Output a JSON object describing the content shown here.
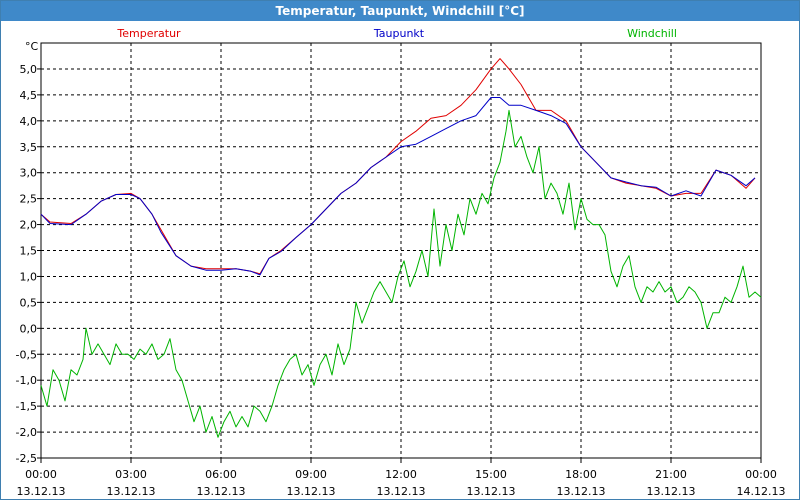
{
  "window": {
    "title": "Temperatur, Taupunkt, Windchill [°C]"
  },
  "chart_data": {
    "type": "line",
    "title": "Temperatur, Taupunkt, Windchill [°C]",
    "ylabel": "°C",
    "ylim": [
      -2.5,
      5.5
    ],
    "yticks": [
      "5,0",
      "4,5",
      "4,0",
      "3,5",
      "3,0",
      "2,5",
      "2,0",
      "1,5",
      "1,0",
      "0,5",
      "0,0",
      "-0,5",
      "-1,0",
      "-1,5",
      "-2,0",
      "-2,5"
    ],
    "xlim_hours": [
      0,
      24
    ],
    "xticks": [
      {
        "time": "00:00",
        "date": "13.12.13"
      },
      {
        "time": "03:00",
        "date": "13.12.13"
      },
      {
        "time": "06:00",
        "date": "13.12.13"
      },
      {
        "time": "09:00",
        "date": "13.12.13"
      },
      {
        "time": "12:00",
        "date": "13.12.13"
      },
      {
        "time": "15:00",
        "date": "13.12.13"
      },
      {
        "time": "18:00",
        "date": "13.12.13"
      },
      {
        "time": "21:00",
        "date": "13.12.13"
      },
      {
        "time": "00:00",
        "date": "14.12.13"
      }
    ],
    "grid": true,
    "legend_position": "top",
    "series": [
      {
        "name": "Temperatur",
        "color": "#e00000",
        "points": [
          [
            0,
            2.2
          ],
          [
            0.3,
            2.05
          ],
          [
            1,
            2.02
          ],
          [
            1.5,
            2.2
          ],
          [
            2,
            2.45
          ],
          [
            2.5,
            2.58
          ],
          [
            3,
            2.6
          ],
          [
            3.3,
            2.5
          ],
          [
            3.7,
            2.2
          ],
          [
            4,
            1.9
          ],
          [
            4.5,
            1.4
          ],
          [
            5,
            1.2
          ],
          [
            5.5,
            1.15
          ],
          [
            6,
            1.15
          ],
          [
            6.5,
            1.15
          ],
          [
            7,
            1.1
          ],
          [
            7.3,
            1.05
          ],
          [
            7.6,
            1.35
          ],
          [
            8,
            1.5
          ],
          [
            8.5,
            1.75
          ],
          [
            9,
            2.0
          ],
          [
            9.5,
            2.3
          ],
          [
            10,
            2.6
          ],
          [
            10.5,
            2.8
          ],
          [
            11,
            3.1
          ],
          [
            11.5,
            3.3
          ],
          [
            12,
            3.6
          ],
          [
            12.5,
            3.8
          ],
          [
            13,
            4.05
          ],
          [
            13.5,
            4.1
          ],
          [
            14,
            4.3
          ],
          [
            14.5,
            4.6
          ],
          [
            15,
            5.0
          ],
          [
            15.3,
            5.2
          ],
          [
            15.6,
            5.0
          ],
          [
            16,
            4.7
          ],
          [
            16.5,
            4.2
          ],
          [
            17,
            4.2
          ],
          [
            17.5,
            4.0
          ],
          [
            18,
            3.5
          ],
          [
            18.5,
            3.2
          ],
          [
            19,
            2.9
          ],
          [
            19.5,
            2.8
          ],
          [
            20,
            2.75
          ],
          [
            20.5,
            2.7
          ],
          [
            21,
            2.55
          ],
          [
            21.5,
            2.6
          ],
          [
            22,
            2.6
          ],
          [
            22.5,
            3.05
          ],
          [
            23,
            2.95
          ],
          [
            23.5,
            2.7
          ],
          [
            23.8,
            2.9
          ]
        ]
      },
      {
        "name": "Taupunkt",
        "color": "#0000c8",
        "points": [
          [
            0,
            2.2
          ],
          [
            0.3,
            2.02
          ],
          [
            1,
            2.0
          ],
          [
            1.5,
            2.2
          ],
          [
            2,
            2.45
          ],
          [
            2.5,
            2.58
          ],
          [
            3,
            2.58
          ],
          [
            3.3,
            2.5
          ],
          [
            3.7,
            2.2
          ],
          [
            4,
            1.85
          ],
          [
            4.5,
            1.4
          ],
          [
            5,
            1.2
          ],
          [
            5.5,
            1.12
          ],
          [
            6,
            1.12
          ],
          [
            6.5,
            1.15
          ],
          [
            7,
            1.1
          ],
          [
            7.3,
            1.03
          ],
          [
            7.6,
            1.35
          ],
          [
            8,
            1.48
          ],
          [
            8.5,
            1.75
          ],
          [
            9,
            2.0
          ],
          [
            9.5,
            2.3
          ],
          [
            10,
            2.6
          ],
          [
            10.5,
            2.8
          ],
          [
            11,
            3.1
          ],
          [
            11.5,
            3.3
          ],
          [
            12,
            3.5
          ],
          [
            12.5,
            3.55
          ],
          [
            13,
            3.7
          ],
          [
            13.5,
            3.85
          ],
          [
            14,
            4.0
          ],
          [
            14.5,
            4.1
          ],
          [
            15,
            4.45
          ],
          [
            15.3,
            4.45
          ],
          [
            15.6,
            4.3
          ],
          [
            16,
            4.3
          ],
          [
            16.5,
            4.2
          ],
          [
            17,
            4.1
          ],
          [
            17.5,
            3.95
          ],
          [
            18,
            3.5
          ],
          [
            18.5,
            3.2
          ],
          [
            19,
            2.9
          ],
          [
            19.5,
            2.82
          ],
          [
            20,
            2.75
          ],
          [
            20.5,
            2.72
          ],
          [
            21,
            2.55
          ],
          [
            21.5,
            2.65
          ],
          [
            22,
            2.55
          ],
          [
            22.5,
            3.05
          ],
          [
            23,
            2.95
          ],
          [
            23.5,
            2.75
          ],
          [
            23.8,
            2.9
          ]
        ]
      },
      {
        "name": "Windchill",
        "color": "#00b400",
        "points": [
          [
            0,
            -1.1
          ],
          [
            0.2,
            -1.5
          ],
          [
            0.4,
            -0.8
          ],
          [
            0.6,
            -1.0
          ],
          [
            0.8,
            -1.4
          ],
          [
            1,
            -0.8
          ],
          [
            1.2,
            -0.9
          ],
          [
            1.4,
            -0.6
          ],
          [
            1.5,
            0.0
          ],
          [
            1.7,
            -0.5
          ],
          [
            1.9,
            -0.3
          ],
          [
            2.1,
            -0.5
          ],
          [
            2.3,
            -0.7
          ],
          [
            2.5,
            -0.3
          ],
          [
            2.7,
            -0.5
          ],
          [
            2.9,
            -0.5
          ],
          [
            3.1,
            -0.6
          ],
          [
            3.3,
            -0.4
          ],
          [
            3.5,
            -0.5
          ],
          [
            3.7,
            -0.3
          ],
          [
            3.9,
            -0.6
          ],
          [
            4.1,
            -0.5
          ],
          [
            4.3,
            -0.2
          ],
          [
            4.5,
            -0.8
          ],
          [
            4.7,
            -1.0
          ],
          [
            4.9,
            -1.4
          ],
          [
            5.1,
            -1.8
          ],
          [
            5.3,
            -1.5
          ],
          [
            5.5,
            -2.0
          ],
          [
            5.7,
            -1.7
          ],
          [
            5.9,
            -2.1
          ],
          [
            6.1,
            -1.8
          ],
          [
            6.3,
            -1.6
          ],
          [
            6.5,
            -1.9
          ],
          [
            6.7,
            -1.7
          ],
          [
            6.9,
            -1.9
          ],
          [
            7.1,
            -1.5
          ],
          [
            7.3,
            -1.6
          ],
          [
            7.5,
            -1.8
          ],
          [
            7.7,
            -1.5
          ],
          [
            7.9,
            -1.1
          ],
          [
            8.1,
            -0.8
          ],
          [
            8.3,
            -0.6
          ],
          [
            8.5,
            -0.5
          ],
          [
            8.7,
            -0.9
          ],
          [
            8.9,
            -0.7
          ],
          [
            9.1,
            -1.1
          ],
          [
            9.3,
            -0.7
          ],
          [
            9.5,
            -0.5
          ],
          [
            9.7,
            -0.9
          ],
          [
            9.9,
            -0.3
          ],
          [
            10.1,
            -0.7
          ],
          [
            10.3,
            -0.4
          ],
          [
            10.5,
            0.5
          ],
          [
            10.7,
            0.1
          ],
          [
            10.9,
            0.4
          ],
          [
            11.1,
            0.7
          ],
          [
            11.3,
            0.9
          ],
          [
            11.5,
            0.7
          ],
          [
            11.7,
            0.5
          ],
          [
            11.9,
            1.0
          ],
          [
            12.1,
            1.3
          ],
          [
            12.3,
            0.8
          ],
          [
            12.5,
            1.1
          ],
          [
            12.7,
            1.5
          ],
          [
            12.9,
            1.0
          ],
          [
            13.1,
            2.3
          ],
          [
            13.3,
            1.2
          ],
          [
            13.5,
            2.0
          ],
          [
            13.7,
            1.5
          ],
          [
            13.9,
            2.2
          ],
          [
            14.1,
            1.8
          ],
          [
            14.3,
            2.5
          ],
          [
            14.5,
            2.2
          ],
          [
            14.7,
            2.6
          ],
          [
            14.9,
            2.4
          ],
          [
            15.1,
            2.9
          ],
          [
            15.3,
            3.2
          ],
          [
            15.5,
            3.8
          ],
          [
            15.6,
            4.2
          ],
          [
            15.8,
            3.5
          ],
          [
            16,
            3.7
          ],
          [
            16.2,
            3.3
          ],
          [
            16.4,
            3.0
          ],
          [
            16.6,
            3.5
          ],
          [
            16.8,
            2.5
          ],
          [
            17,
            2.8
          ],
          [
            17.2,
            2.6
          ],
          [
            17.4,
            2.2
          ],
          [
            17.6,
            2.8
          ],
          [
            17.8,
            1.9
          ],
          [
            18,
            2.5
          ],
          [
            18.2,
            2.1
          ],
          [
            18.4,
            2.0
          ],
          [
            18.6,
            2.0
          ],
          [
            18.8,
            1.8
          ],
          [
            19,
            1.1
          ],
          [
            19.2,
            0.8
          ],
          [
            19.4,
            1.2
          ],
          [
            19.6,
            1.4
          ],
          [
            19.8,
            0.8
          ],
          [
            20,
            0.5
          ],
          [
            20.2,
            0.8
          ],
          [
            20.4,
            0.7
          ],
          [
            20.6,
            0.9
          ],
          [
            20.8,
            0.7
          ],
          [
            21,
            0.8
          ],
          [
            21.2,
            0.5
          ],
          [
            21.4,
            0.6
          ],
          [
            21.6,
            0.8
          ],
          [
            21.8,
            0.7
          ],
          [
            22,
            0.5
          ],
          [
            22.2,
            0.0
          ],
          [
            22.4,
            0.3
          ],
          [
            22.6,
            0.3
          ],
          [
            22.8,
            0.6
          ],
          [
            23,
            0.5
          ],
          [
            23.2,
            0.8
          ],
          [
            23.4,
            1.2
          ],
          [
            23.6,
            0.6
          ],
          [
            23.8,
            0.7
          ],
          [
            24,
            0.6
          ]
        ]
      }
    ]
  }
}
